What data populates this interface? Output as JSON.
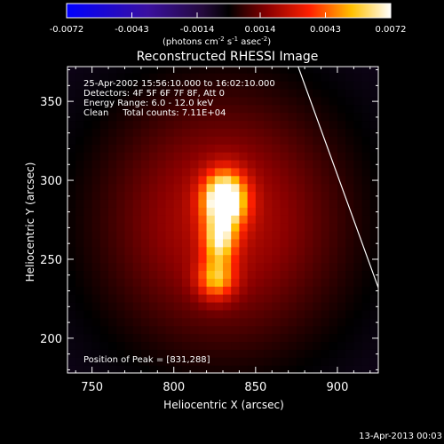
{
  "chart_data": {
    "type": "heatmap",
    "title": "Reconstructed RHESSI Image",
    "info_lines": [
      "25-Apr-2002 15:56:10.000 to 16:02:10.000",
      "Detectors: 4F 5F 6F 7F 8F, Att 0",
      "Energy Range: 6.0 - 12.0 keV",
      "Clean     Total counts: 7.11E+04"
    ],
    "peak_label": "Position of Peak = [831,288]",
    "peak": [
      831,
      288
    ],
    "xlabel": "Heliocentric X (arcsec)",
    "ylabel": "Heliocentric Y (arcsec)",
    "xlim": [
      735,
      925
    ],
    "ylim": [
      178,
      372
    ],
    "xticks": [
      "750",
      "800",
      "850",
      "900"
    ],
    "yticks": [
      "200",
      "250",
      "300",
      "350"
    ],
    "colorbar": {
      "range": [
        -0.0072,
        0.0072
      ],
      "ticks": [
        "-0.0072",
        "-0.0043",
        "-0.0014",
        "0.0014",
        "0.0043",
        "0.0072"
      ],
      "unit_label": "(photons cm",
      "unit_exp1": "-2",
      "unit_mid": " s",
      "unit_exp2": "-1",
      "unit_mid2": " asec",
      "unit_exp3": "-2",
      "unit_end": ")"
    },
    "sources": [
      {
        "x": 831,
        "y": 288,
        "sigma_x": 9,
        "sigma_y": 12,
        "amp": 0.0072
      },
      {
        "x": 828,
        "y": 262,
        "sigma_x": 7,
        "sigma_y": 10,
        "amp": 0.0042
      },
      {
        "x": 826,
        "y": 238,
        "sigma_x": 8,
        "sigma_y": 9,
        "amp": 0.0038
      },
      {
        "x": 830,
        "y": 275,
        "sigma_x": 55,
        "sigma_y": 60,
        "amp": 0.003
      }
    ],
    "limb_line": {
      "start": [
        876,
        372
      ],
      "end": [
        925,
        232
      ]
    }
  },
  "footer": {
    "timestamp": "13-Apr-2013 00:03"
  }
}
